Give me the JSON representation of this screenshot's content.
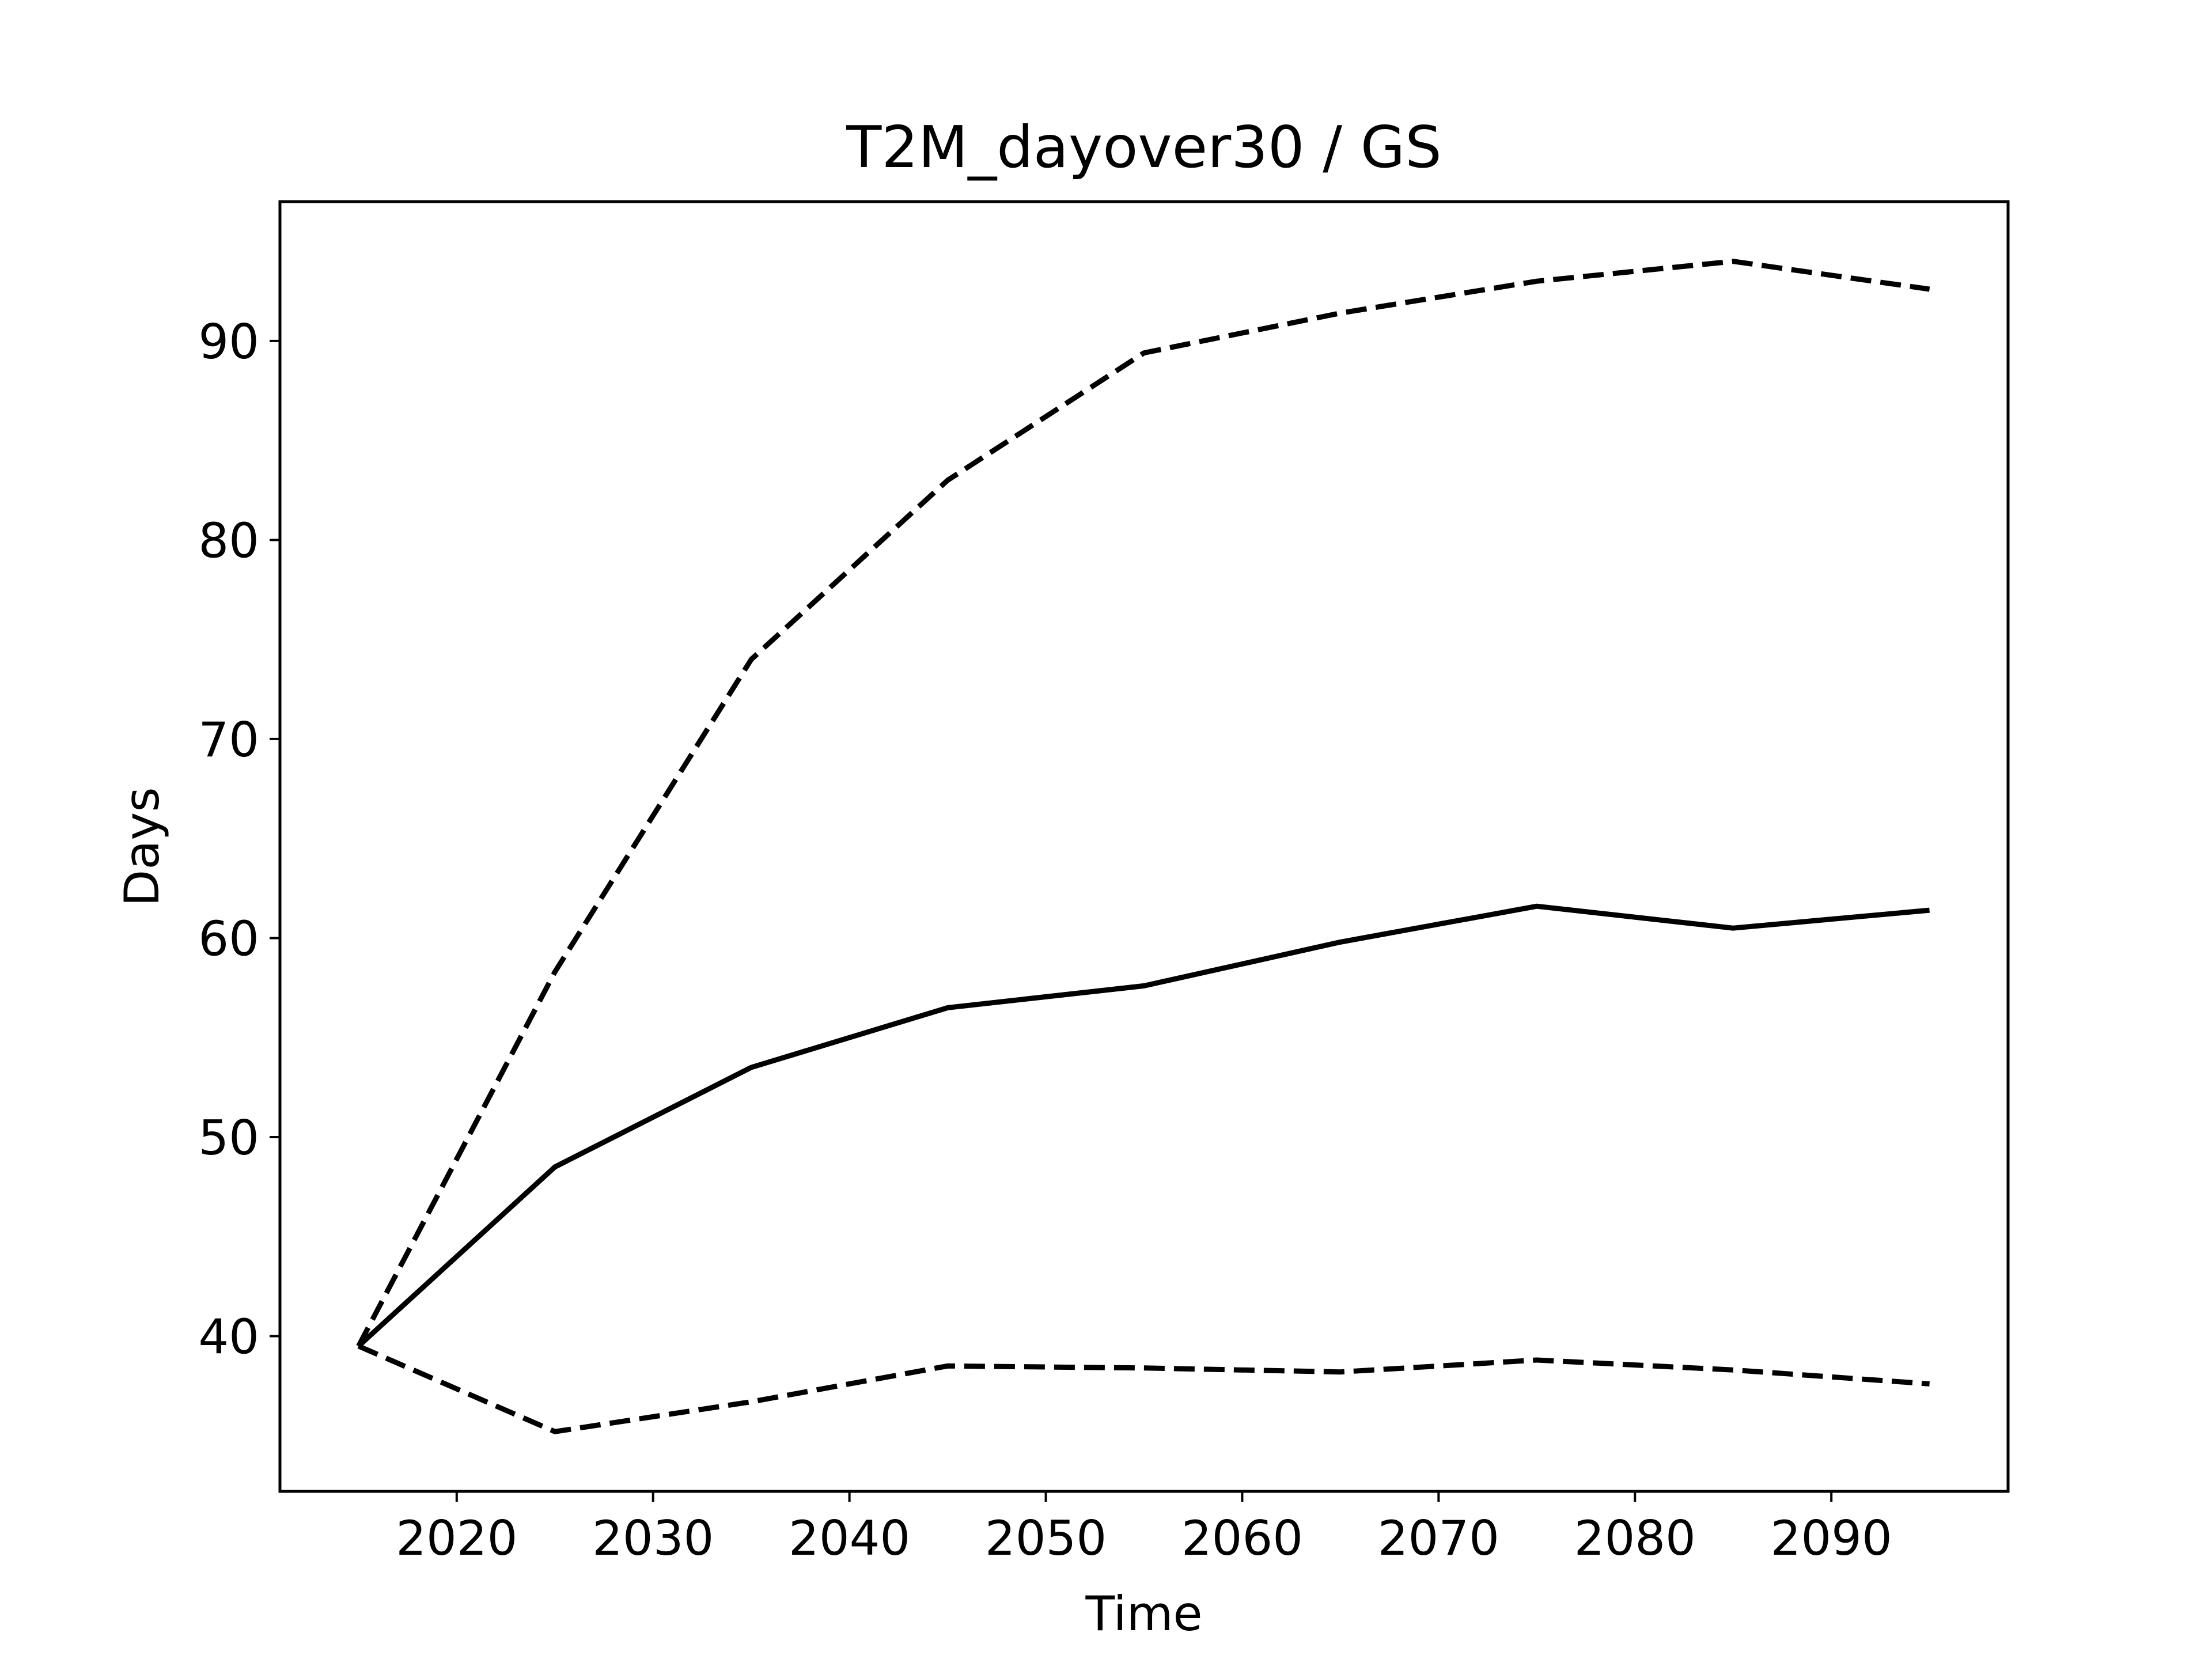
{
  "chart_data": {
    "type": "line",
    "title": "T2M_dayover30 / GS",
    "xlabel": "Time",
    "ylabel": "Days",
    "x": [
      2015,
      2025,
      2035,
      2045,
      2055,
      2065,
      2075,
      2085,
      2095
    ],
    "xlim": [
      2011,
      2099
    ],
    "ylim": [
      32.2,
      97
    ],
    "xticks": [
      2020,
      2030,
      2040,
      2050,
      2060,
      2070,
      2080,
      2090
    ],
    "yticks": [
      40,
      50,
      60,
      70,
      80,
      90
    ],
    "grid": false,
    "legend": "none",
    "series": [
      {
        "style": "dashed",
        "color": "#000000",
        "values": [
          39.5,
          58.3,
          74.0,
          83.0,
          89.4,
          91.4,
          93.0,
          94.0,
          92.6
        ]
      },
      {
        "style": "solid",
        "color": "#000000",
        "values": [
          39.5,
          48.5,
          53.5,
          56.5,
          57.6,
          59.8,
          61.6,
          60.5,
          61.4
        ]
      },
      {
        "style": "dashed",
        "color": "#000000",
        "values": [
          39.5,
          35.2,
          36.7,
          38.5,
          38.4,
          38.2,
          38.8,
          38.3,
          37.6
        ]
      }
    ]
  }
}
